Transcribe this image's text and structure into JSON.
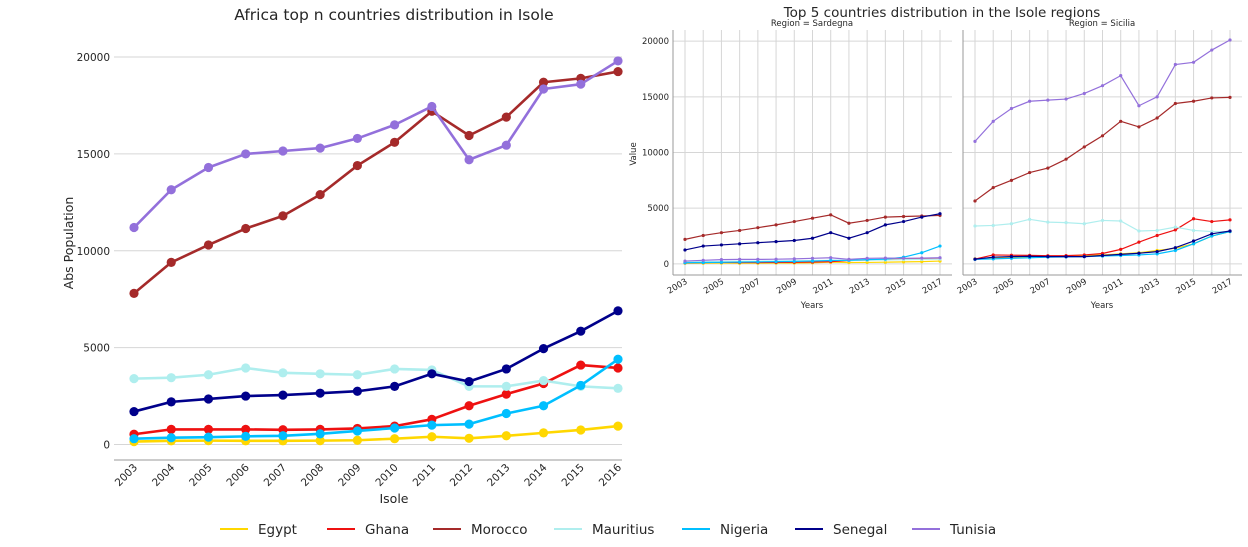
{
  "chart_data": [
    {
      "type": "line",
      "title": "Africa top n countries distribution in Isole",
      "xlabel": "Isole",
      "ylabel": "Abs Population",
      "x": [
        2003,
        2004,
        2005,
        2006,
        2007,
        2008,
        2009,
        2010,
        2011,
        2012,
        2013,
        2014,
        2015,
        2016
      ],
      "xticks": [
        "2003",
        "2004",
        "2005",
        "2006",
        "2007",
        "2008",
        "2009",
        "2010",
        "2011",
        "2012",
        "2013",
        "2014",
        "2015",
        "2016"
      ],
      "ylim": [
        -800,
        21500
      ],
      "yticks": [
        0,
        5000,
        10000,
        15000,
        20000
      ],
      "grid": "horizontal",
      "series": [
        {
          "name": "Egypt",
          "color": "#ffd700",
          "values": [
            150,
            190,
            200,
            190,
            190,
            200,
            220,
            300,
            400,
            320,
            450,
            600,
            750,
            950
          ]
        },
        {
          "name": "Ghana",
          "color": "#ee1111",
          "values": [
            530,
            780,
            780,
            780,
            760,
            780,
            830,
            950,
            1300,
            2000,
            2600,
            3150,
            4100,
            3950
          ]
        },
        {
          "name": "Morocco",
          "color": "#a52a2a",
          "values": [
            7800,
            9400,
            10300,
            11150,
            11800,
            12900,
            14400,
            15600,
            17200,
            15950,
            16900,
            18700,
            18900,
            19250
          ]
        },
        {
          "name": "Mauritius",
          "color": "#afeeee",
          "values": [
            3400,
            3450,
            3600,
            3950,
            3700,
            3650,
            3600,
            3900,
            3850,
            3000,
            3000,
            3300,
            3000,
            2900
          ]
        },
        {
          "name": "Nigeria",
          "color": "#00bfff",
          "values": [
            300,
            350,
            380,
            420,
            450,
            550,
            700,
            850,
            1000,
            1050,
            1600,
            2000,
            3050,
            4400
          ]
        },
        {
          "name": "Senegal",
          "color": "#00008b",
          "values": [
            1700,
            2200,
            2350,
            2500,
            2550,
            2650,
            2750,
            3000,
            3650,
            3250,
            3900,
            4950,
            5850,
            6900
          ]
        },
        {
          "name": "Tunisia",
          "color": "#9370db",
          "values": [
            11200,
            13150,
            14300,
            15000,
            15150,
            15300,
            15800,
            16500,
            17450,
            14700,
            15450,
            18350,
            18600,
            19800
          ]
        }
      ]
    },
    {
      "type": "line",
      "title": "Top 5 countries distribution in the Isole regions",
      "panels": [
        {
          "subtitle": "Region = Sardegna",
          "xlabel": "Years",
          "ylabel": "Value",
          "x": [
            2003,
            2004,
            2005,
            2006,
            2007,
            2008,
            2009,
            2010,
            2011,
            2012,
            2013,
            2014,
            2015,
            2016,
            2017
          ],
          "xticks": [
            "2003",
            "2005",
            "2007",
            "2009",
            "2011",
            "2013",
            "2015",
            "2017"
          ],
          "ylim": [
            -1000,
            21000
          ],
          "yticks": [
            "0",
            "5000",
            "10000",
            "15000",
            "20000"
          ],
          "series": [
            {
              "name": "Egypt",
              "color": "#ffd700",
              "values": [
                50,
                60,
                70,
                60,
                60,
                70,
                80,
                100,
                150,
                120,
                130,
                150,
                180,
                200,
                250
              ]
            },
            {
              "name": "Ghana",
              "color": "#ee1111",
              "values": [
                100,
                120,
                130,
                120,
                120,
                130,
                140,
                160,
                200,
                300,
                350,
                400,
                420,
                430,
                450
              ]
            },
            {
              "name": "Morocco",
              "color": "#a52a2a",
              "values": [
                2200,
                2550,
                2800,
                3000,
                3250,
                3500,
                3800,
                4100,
                4400,
                3650,
                3900,
                4200,
                4250,
                4300,
                4350
              ]
            },
            {
              "name": "Mauritius",
              "color": "#afeeee",
              "values": [
                180,
                200,
                220,
                240,
                240,
                260,
                280,
                300,
                320,
                300,
                330,
                350,
                380,
                400,
                420
              ]
            },
            {
              "name": "Nigeria",
              "color": "#00bfff",
              "values": [
                100,
                120,
                140,
                160,
                180,
                200,
                220,
                250,
                300,
                320,
                380,
                420,
                600,
                1000,
                1600
              ]
            },
            {
              "name": "Senegal",
              "color": "#00008b",
              "values": [
                1250,
                1600,
                1700,
                1800,
                1900,
                2000,
                2100,
                2300,
                2800,
                2300,
                2800,
                3500,
                3800,
                4200,
                4500
              ]
            },
            {
              "name": "Tunisia",
              "color": "#9370db",
              "values": [
                250,
                320,
                380,
                400,
                400,
                420,
                450,
                500,
                550,
                400,
                500,
                520,
                500,
                520,
                550
              ]
            }
          ]
        },
        {
          "subtitle": "Region = Sicilia",
          "xlabel": "Years",
          "x": [
            2003,
            2004,
            2005,
            2006,
            2007,
            2008,
            2009,
            2010,
            2011,
            2012,
            2013,
            2014,
            2015,
            2016,
            2017
          ],
          "xticks": [
            "2003",
            "2005",
            "2007",
            "2009",
            "2011",
            "2013",
            "2015",
            "2017"
          ],
          "ylim": [
            -1000,
            21000
          ],
          "series": [
            {
              "name": "Egypt",
              "color": "#ffd700",
              "values": [
                450,
                500,
                550,
                600,
                650,
                700,
                750,
                800,
                900,
                1000,
                1200,
                1400,
                1800,
                2500,
                2900
              ]
            },
            {
              "name": "Ghana",
              "color": "#ee1111",
              "values": [
                430,
                800,
                780,
                760,
                730,
                740,
                800,
                930,
                1300,
                1950,
                2550,
                3050,
                4050,
                3800,
                3950
              ]
            },
            {
              "name": "Morocco",
              "color": "#a52a2a",
              "values": [
                5650,
                6850,
                7500,
                8200,
                8600,
                9400,
                10500,
                11500,
                12800,
                12300,
                13100,
                14400,
                14600,
                14900,
                14950
              ]
            },
            {
              "name": "Mauritius",
              "color": "#afeeee",
              "values": [
                3400,
                3450,
                3600,
                4000,
                3750,
                3700,
                3600,
                3900,
                3850,
                2950,
                3000,
                3300,
                3000,
                2900,
                2900
              ]
            },
            {
              "name": "Nigeria",
              "color": "#00bfff",
              "values": [
                400,
                450,
                500,
                550,
                600,
                620,
                650,
                700,
                750,
                800,
                900,
                1200,
                1800,
                2500,
                2900
              ]
            },
            {
              "name": "Senegal",
              "color": "#00008b",
              "values": [
                420,
                600,
                650,
                680,
                650,
                650,
                650,
                750,
                850,
                950,
                1100,
                1450,
                2050,
                2700,
                2950
              ]
            },
            {
              "name": "Tunisia",
              "color": "#9370db",
              "values": [
                11000,
                12800,
                13950,
                14600,
                14700,
                14800,
                15300,
                16000,
                16900,
                14200,
                15000,
                17900,
                18100,
                19200,
                20100
              ]
            }
          ]
        }
      ]
    }
  ],
  "legend": {
    "placement": "bottom-center",
    "entries": [
      {
        "label": "Egypt",
        "color": "#ffd700"
      },
      {
        "label": "Ghana",
        "color": "#ee1111"
      },
      {
        "label": "Morocco",
        "color": "#a52a2a"
      },
      {
        "label": "Mauritius",
        "color": "#afeeee"
      },
      {
        "label": "Nigeria",
        "color": "#00bfff"
      },
      {
        "label": "Senegal",
        "color": "#00008b"
      },
      {
        "label": "Tunisia",
        "color": "#9370db"
      }
    ]
  }
}
